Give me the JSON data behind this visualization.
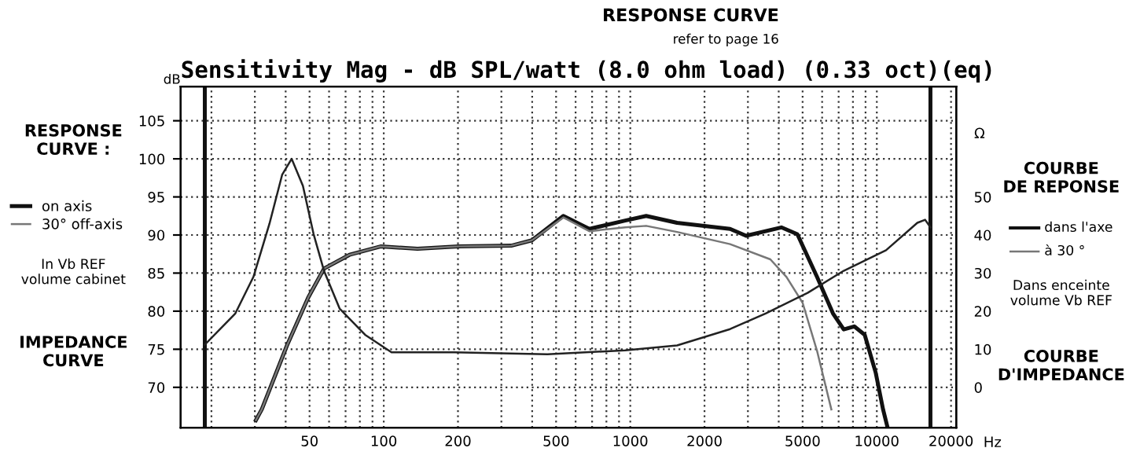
{
  "chart_data": {
    "type": "line",
    "title": "Sensitivity Mag - dB SPL/watt (8.0 ohm load) (0.33 oct)(eq)",
    "xlabel": "Hz",
    "ylabel": "dB",
    "y2label": "Ω",
    "log": "x",
    "grid": true,
    "legend": "left",
    "line_style": "solid",
    "marker": "none",
    "xlim": [
      15,
      21000
    ],
    "ylim": [
      64.7,
      109.5
    ],
    "y2lim": [
      -10.6,
      79
    ],
    "xticks": [
      {
        "value": 20,
        "label": null
      },
      {
        "value": 30,
        "label": null
      },
      {
        "value": 40,
        "label": null
      },
      50,
      {
        "value": 60,
        "label": null
      },
      {
        "value": 70,
        "label": null
      },
      {
        "value": 80,
        "label": null
      },
      {
        "value": 90,
        "label": null
      },
      100,
      200,
      {
        "value": 300,
        "label": null
      },
      {
        "value": 400,
        "label": null
      },
      500,
      {
        "value": 600,
        "label": null
      },
      {
        "value": 700,
        "label": null
      },
      {
        "value": 800,
        "label": null
      },
      {
        "value": 900,
        "label": null
      },
      1000,
      2000,
      {
        "value": 3000,
        "label": null
      },
      {
        "value": 4000,
        "label": null
      },
      5000,
      {
        "value": 6000,
        "label": null
      },
      {
        "value": 7000,
        "label": null
      },
      {
        "value": 8000,
        "label": null
      },
      {
        "value": 9000,
        "label": null
      },
      10000,
      20000
    ],
    "yticks": [
      70,
      75,
      80,
      85,
      90,
      95,
      100,
      105
    ],
    "y2ticks": [
      0,
      10,
      20,
      30,
      40,
      50
    ],
    "ref_lines": [
      {
        "axis": "x",
        "value": 18.8,
        "label": null,
        "color": "#111111"
      },
      {
        "axis": "x",
        "value": 16500,
        "label": null,
        "color": "#111111"
      }
    ],
    "series": [
      {
        "name": "on axis",
        "color": "#111111",
        "x": [
          30.3,
          32,
          40.5,
          49.4,
          57.3,
          72.6,
          97,
          137,
          201,
          329,
          399,
          535,
          682,
          954,
          1160,
          1548,
          2540,
          2950,
          4100,
          4760,
          5720,
          6640,
          7340,
          8100,
          8930,
          9900,
          10600,
          11000
        ],
        "values": [
          65.7,
          67.1,
          75.5,
          81.8,
          85.6,
          87.4,
          88.5,
          88.2,
          88.5,
          88.6,
          89.3,
          92.5,
          90.8,
          91.9,
          92.5,
          91.6,
          90.8,
          89.9,
          91.0,
          90.1,
          84.5,
          79.7,
          77.6,
          78.0,
          76.9,
          71.9,
          67.1,
          65.0
        ]
      },
      {
        "name": "30° off-axis",
        "color": "#777777",
        "x": [
          30.3,
          32,
          40.5,
          49.4,
          57.3,
          72.6,
          97,
          137,
          201,
          329,
          399,
          535,
          682,
          954,
          1160,
          1548,
          2540,
          3700,
          4300,
          5000,
          5720,
          6540
        ],
        "values": [
          65.7,
          67.1,
          75.5,
          81.8,
          85.6,
          87.4,
          88.5,
          88.2,
          88.5,
          88.6,
          89.3,
          92.3,
          90.5,
          91.0,
          91.2,
          90.4,
          88.8,
          86.8,
          84.5,
          81.1,
          74.8,
          67.1
        ]
      },
      {
        "axis": "y2",
        "color": "#222222",
        "x": [
          18.8,
          25,
          29.6,
          34.4,
          38.7,
          42.3,
          47,
          51.9,
          57.3,
          66.2,
          84,
          107.5,
          193,
          461,
          954,
          1548,
          2540,
          3540,
          5240,
          7340,
          10900,
          14600,
          15700,
          16500
        ],
        "values": [
          11.2,
          19.4,
          29,
          43,
          55.8,
          60,
          52.9,
          40.3,
          30.5,
          20.7,
          13.8,
          9.2,
          9.2,
          8.7,
          9.7,
          11,
          15.3,
          19.4,
          24.8,
          30.6,
          36,
          43.2,
          44,
          42
        ]
      }
    ],
    "annotations": [
      "RESPONSE CURVE",
      "refer to page 16",
      "RESPONSE CURVE :",
      "In Vb REF volume cabinet",
      "IMPEDANCE CURVE",
      "COURBE DE REPONSE",
      "dans l'axe",
      "à 30 °",
      "Dans enceinte volume Vb REF",
      "COURBE D'IMPEDANCE"
    ]
  }
}
